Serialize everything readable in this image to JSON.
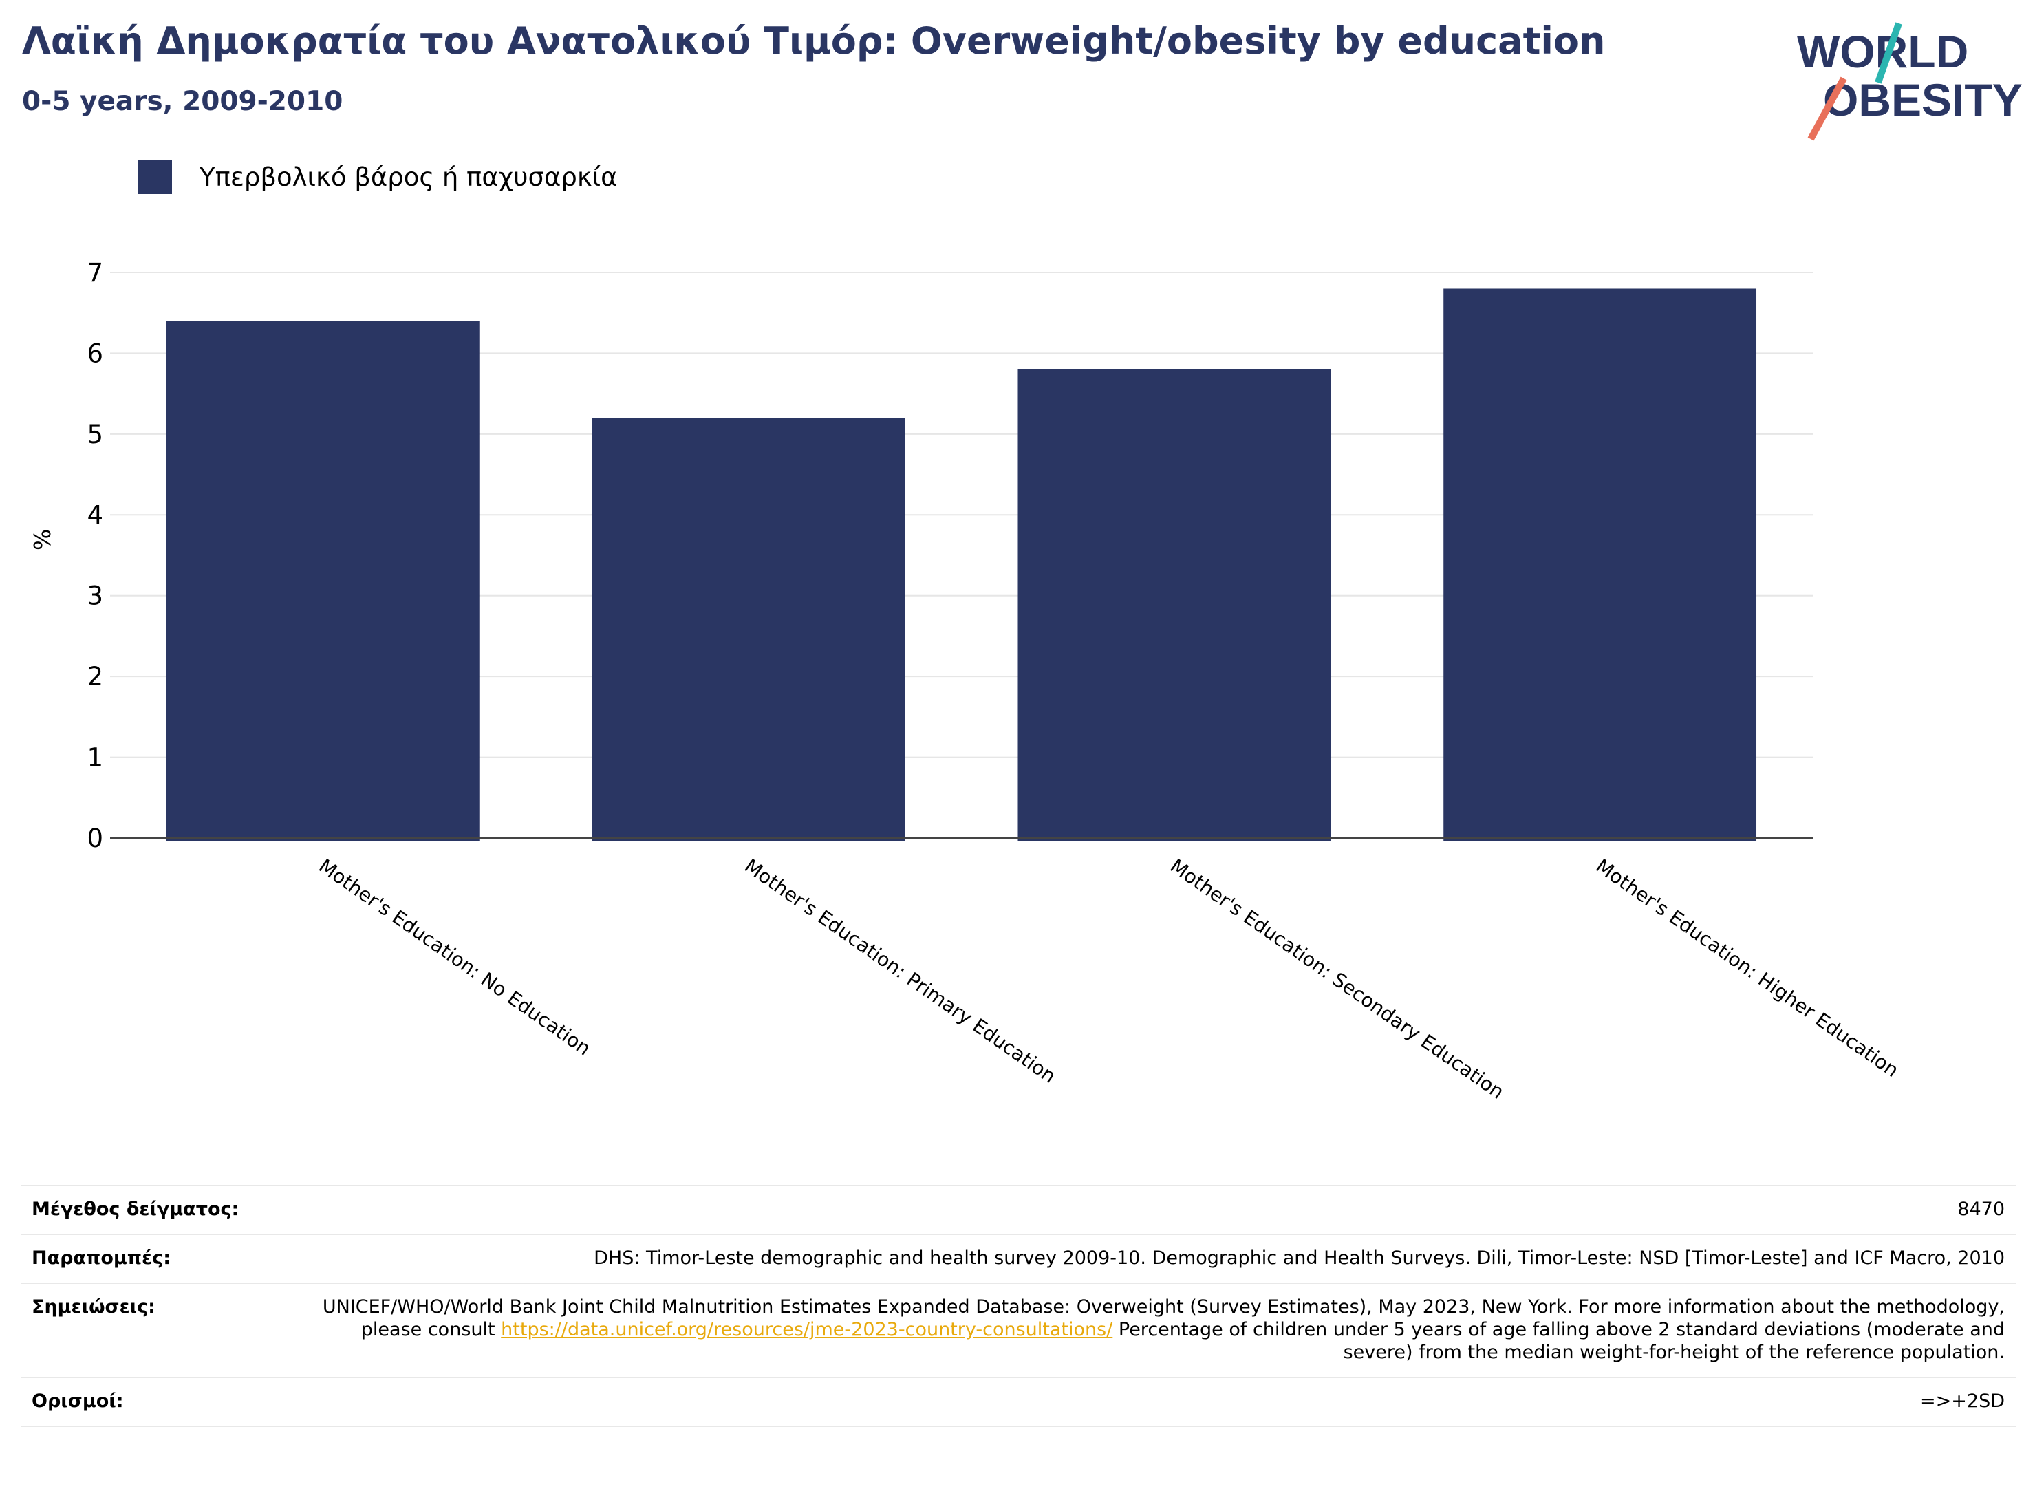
{
  "header": {
    "title": "Λαϊκή Δημοκρατία του Ανατολικού Τιμόρ: Overweight/obesity by education",
    "subtitle": "0-5 years, 2009-2010"
  },
  "logo": {
    "line1": "WORLD",
    "line2": "OBESITY"
  },
  "colors": {
    "bar": "#2a3663",
    "title": "#2a3663",
    "link": "#e8a90c",
    "logo_teal": "#2bb5b0",
    "logo_coral": "#e8705a"
  },
  "chart_data": {
    "type": "bar",
    "categories": [
      "Mother's Education: No Education",
      "Mother's Education: Primary Education",
      "Mother's Education: Secondary Education",
      "Mother's Education: Higher Education"
    ],
    "series": [
      {
        "name": "Υπερβολικό βάρος ή παχυσαρκία",
        "values": [
          6.4,
          5.2,
          5.8,
          6.8
        ]
      }
    ],
    "ylabel": "%",
    "ylim": [
      0,
      7
    ],
    "yticks": [
      "0",
      "1",
      "2",
      "3",
      "4",
      "5",
      "6",
      "7"
    ],
    "grid": true,
    "legend": "top-left"
  },
  "meta": {
    "sample_size": {
      "label": "Μέγεθος δείγματος:",
      "value": "8470"
    },
    "references": {
      "label": "Παραπομπές:",
      "value": "DHS: Timor-Leste demographic and health survey 2009-10. Demographic and Health Surveys. Dili, Timor-Leste: NSD [Timor-Leste] and ICF Macro, 2010"
    },
    "notes": {
      "label": "Σημειώσεις:",
      "text_before": "UNICEF/WHO/World Bank Joint Child Malnutrition Estimates Expanded Database: Overweight (Survey Estimates), May 2023, New York. For more information about the methodology, please consult ",
      "link": "https://data.unicef.org/resources/jme-2023-country-consultations/",
      "text_after": " Percentage of children under 5 years of age falling above 2 standard deviations (moderate and severe) from the median weight-for-height of the reference population."
    },
    "definitions": {
      "label": "Ορισμοί:",
      "value": "=>+2SD"
    }
  }
}
